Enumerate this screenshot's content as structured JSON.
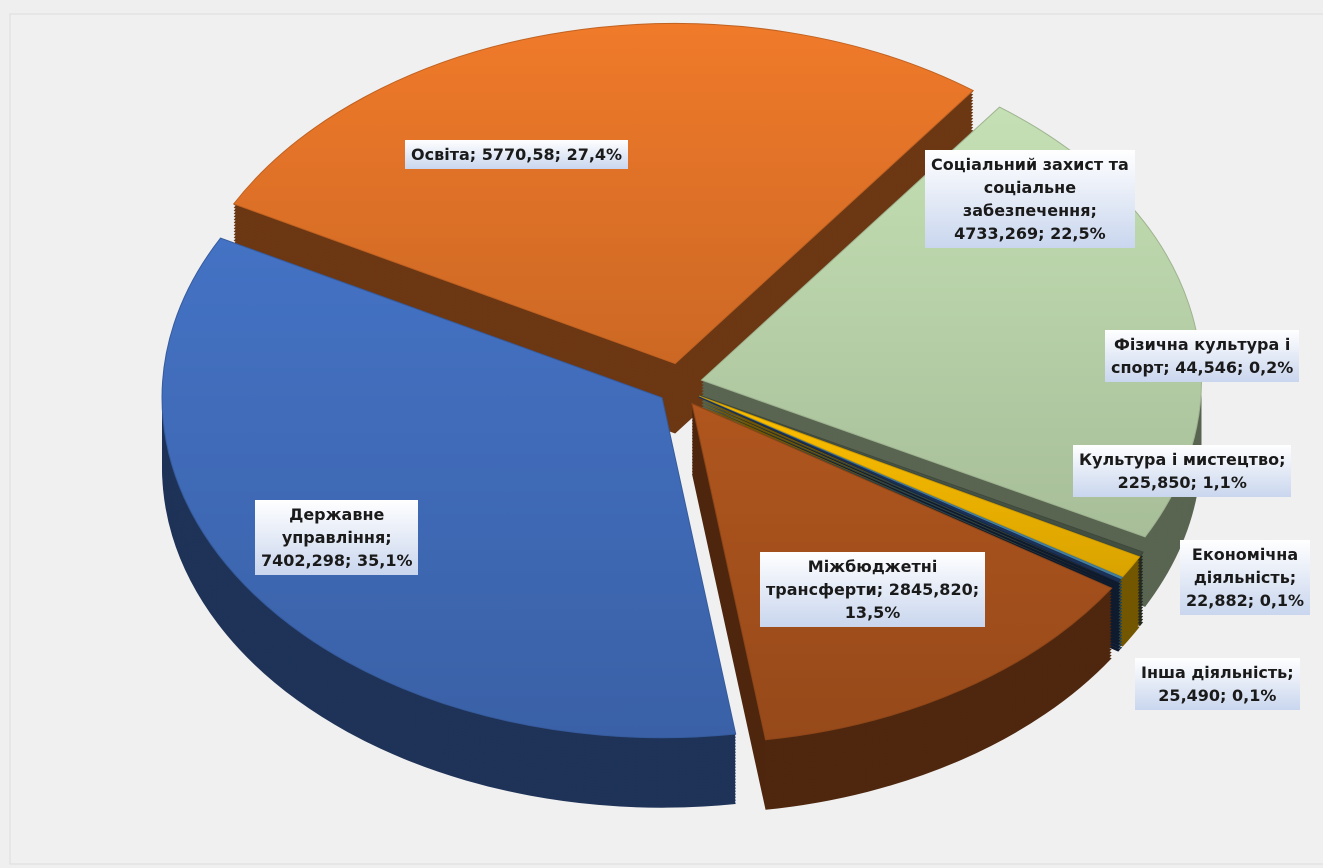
{
  "chart_data": {
    "type": "pie3d",
    "categories": [
      "Освіта",
      "Соціальний захист та соціальне забезпечення",
      "Фізична культура  і спорт",
      "Культура і мистецтво",
      "Економічна діяльність",
      "Інша діяльність",
      "Міжбюджетні трансферти",
      "Державне управління"
    ],
    "values": [
      5770.58,
      4733.269,
      44.546,
      225.85,
      22.882,
      25.49,
      2845.82,
      7402.298
    ],
    "value_labels": [
      "Освіта; 5770,58; 27,4%",
      "Соціальний захист та\nсоціальне\nзабезпечення;\n4733,269; 22,5%",
      "Фізична культура  і\nспорт; 44,546; 0,2%",
      "Культура і мистецтво;\n225,850; 1,1%",
      "Економічна\nдіяльність;\n22,882; 0,1%",
      "Інша діяльність;\n25,490; 0,1%",
      "Міжбюджетні\nтрансферти; 2845,820;\n13,5%",
      "Державне\nуправління;\n7402,298; 35,1%"
    ],
    "colors": [
      "#f07a2a",
      "#c5e0b4",
      "#4d5a4a",
      "#ffc000",
      "#4f94b8",
      "#203a66",
      "#b0561e",
      "#4472c4"
    ]
  }
}
